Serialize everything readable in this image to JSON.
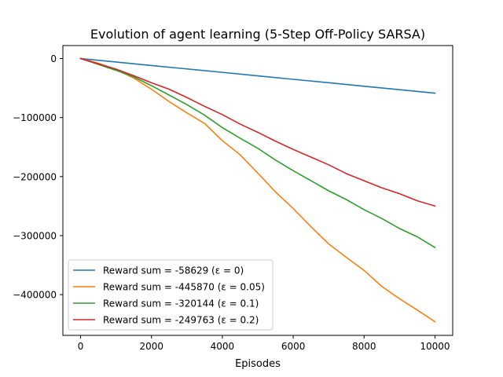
{
  "chart_data": {
    "type": "line",
    "title": "Evolution of agent learning (5-Step Off-Policy SARSA)",
    "xlabel": "Episodes",
    "ylabel": "",
    "xlim": [
      -500,
      10500
    ],
    "ylim": [
      -469000,
      22000
    ],
    "xticks": [
      0,
      2000,
      4000,
      6000,
      8000,
      10000
    ],
    "xtick_labels": [
      "0",
      "2000",
      "4000",
      "6000",
      "8000",
      "10000"
    ],
    "yticks": [
      0,
      -100000,
      -200000,
      -300000,
      -400000
    ],
    "ytick_labels": [
      "0",
      "−100000",
      "−200000",
      "−300000",
      "−400000"
    ],
    "grid": false,
    "legend": "lower-left",
    "series": [
      {
        "name": "Reward sum = -58629 (ε = 0)",
        "color": "#1f77b4",
        "x": [
          0,
          1000,
          2000,
          3000,
          4000,
          5000,
          6000,
          7000,
          8000,
          9000,
          10000
        ],
        "y": [
          0,
          -5900,
          -11800,
          -17600,
          -23400,
          -29300,
          -35200,
          -41000,
          -46900,
          -52800,
          -58629
        ]
      },
      {
        "name": "Reward sum = -445870 (ε = 0.05)",
        "color": "#ff7f0e",
        "x": [
          0,
          500,
          1000,
          1500,
          2000,
          2500,
          3000,
          3500,
          4000,
          4500,
          5000,
          5500,
          6000,
          6500,
          7000,
          7500,
          8000,
          8500,
          9000,
          9500,
          10000
        ],
        "y": [
          0,
          -8000,
          -19000,
          -33000,
          -52000,
          -73000,
          -92000,
          -110000,
          -139000,
          -163000,
          -194000,
          -226000,
          -254000,
          -285000,
          -314000,
          -337000,
          -359000,
          -386000,
          -407000,
          -426000,
          -445870
        ]
      },
      {
        "name": "Reward sum = -320144 (ε = 0.1)",
        "color": "#2ca02c",
        "x": [
          0,
          500,
          1000,
          1500,
          2000,
          2500,
          3000,
          3500,
          4000,
          4500,
          5000,
          5500,
          6000,
          6500,
          7000,
          7500,
          8000,
          8500,
          9000,
          9500,
          10000
        ],
        "y": [
          0,
          -10000,
          -20000,
          -31000,
          -46000,
          -62000,
          -78000,
          -96000,
          -117000,
          -135000,
          -152000,
          -172000,
          -190000,
          -207000,
          -224000,
          -239000,
          -256000,
          -271000,
          -288000,
          -302000,
          -320144
        ]
      },
      {
        "name": "Reward sum = -249763 (ε = 0.2)",
        "color": "#d62728",
        "x": [
          0,
          500,
          1000,
          1500,
          2000,
          2500,
          3000,
          3500,
          4000,
          4500,
          5000,
          5500,
          6000,
          6500,
          7000,
          7500,
          8000,
          8500,
          9000,
          9500,
          10000
        ],
        "y": [
          0,
          -9000,
          -18000,
          -29000,
          -41000,
          -52000,
          -66000,
          -81000,
          -95000,
          -111000,
          -125000,
          -140000,
          -154000,
          -167000,
          -180000,
          -195000,
          -207000,
          -219000,
          -229000,
          -241000,
          -249763
        ]
      }
    ]
  }
}
